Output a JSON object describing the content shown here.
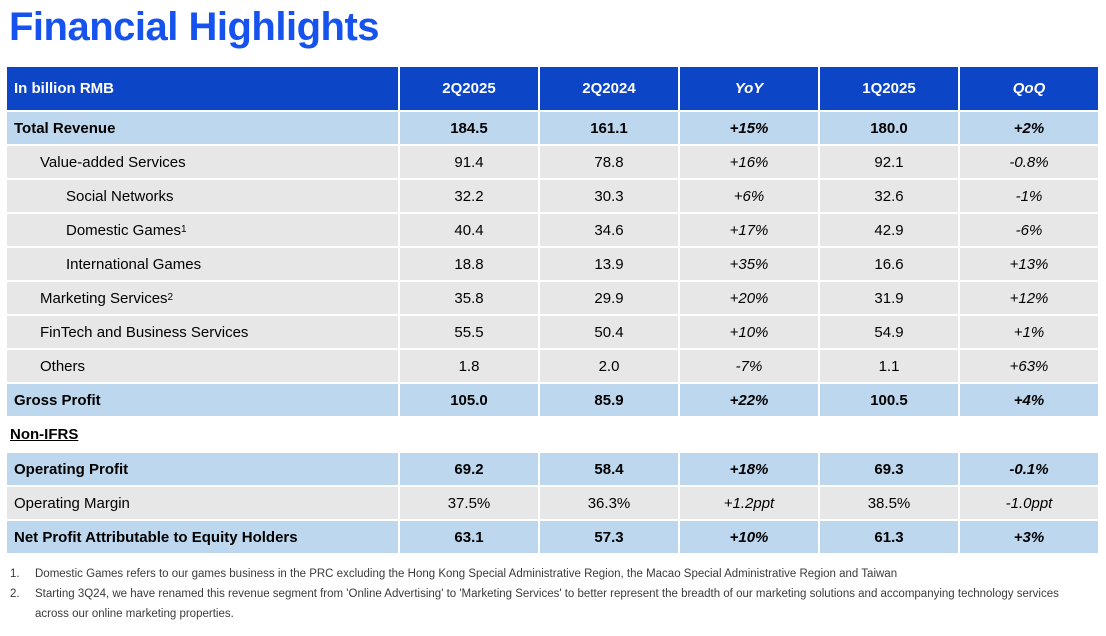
{
  "page": {
    "title": "Financial Highlights"
  },
  "colors": {
    "title_blue": "#1652EE",
    "header_blue": "#0C45C6",
    "highlight_row_blue": "#BDD7EE",
    "grey_row": "#E8E7E7"
  },
  "table": {
    "header": {
      "label": "In billion RMB",
      "columns": [
        {
          "label": "2Q2025",
          "italic": false
        },
        {
          "label": "2Q2024",
          "italic": false
        },
        {
          "label": "YoY",
          "italic": true
        },
        {
          "label": "1Q2025",
          "italic": false
        },
        {
          "label": "QoQ",
          "italic": true
        }
      ]
    },
    "rows": [
      {
        "label": "Total Revenue",
        "indent": 0,
        "style": "highlight",
        "bold": true,
        "values": [
          "184.5",
          "161.1",
          "+15%",
          "180.0",
          "+2%"
        ]
      },
      {
        "label": "Value-added Services",
        "indent": 1,
        "style": "grey",
        "bold": false,
        "values": [
          "91.4",
          "78.8",
          "+16%",
          "92.1",
          "-0.8%"
        ]
      },
      {
        "label": "Social Networks",
        "indent": 2,
        "style": "grey",
        "bold": false,
        "values": [
          "32.2",
          "30.3",
          "+6%",
          "32.6",
          "-1%"
        ]
      },
      {
        "label": "Domestic Games",
        "sup": "1",
        "indent": 2,
        "style": "grey",
        "bold": false,
        "values": [
          "40.4",
          "34.6",
          "+17%",
          "42.9",
          "-6%"
        ]
      },
      {
        "label": "International Games",
        "indent": 2,
        "style": "grey",
        "bold": false,
        "values": [
          "18.8",
          "13.9",
          "+35%",
          "16.6",
          "+13%"
        ]
      },
      {
        "label": "Marketing Services",
        "sup": "2",
        "indent": 1,
        "style": "grey",
        "bold": false,
        "values": [
          "35.8",
          "29.9",
          "+20%",
          "31.9",
          "+12%"
        ]
      },
      {
        "label": "FinTech and Business Services",
        "indent": 1,
        "style": "grey",
        "bold": false,
        "values": [
          "55.5",
          "50.4",
          "+10%",
          "54.9",
          "+1%"
        ]
      },
      {
        "label": "Others",
        "indent": 1,
        "style": "grey",
        "bold": false,
        "values": [
          "1.8",
          "2.0",
          "-7%",
          "1.1",
          "+63%"
        ]
      },
      {
        "label": "Gross Profit",
        "indent": 0,
        "style": "highlight",
        "bold": true,
        "values": [
          "105.0",
          "85.9",
          "+22%",
          "100.5",
          "+4%"
        ]
      },
      {
        "type": "section",
        "label": "Non-IFRS"
      },
      {
        "label": "Operating Profit",
        "indent": 0,
        "style": "highlight",
        "bold": true,
        "values": [
          "69.2",
          "58.4",
          "+18%",
          "69.3",
          "-0.1%"
        ]
      },
      {
        "label": "Operating Margin",
        "indent": 0,
        "style": "grey",
        "bold": false,
        "values": [
          "37.5%",
          "36.3%",
          "+1.2ppt",
          "38.5%",
          "-1.0ppt"
        ]
      },
      {
        "label": "Net Profit Attributable to Equity Holders",
        "indent": 0,
        "style": "highlight",
        "bold": true,
        "values": [
          "63.1",
          "57.3",
          "+10%",
          "61.3",
          "+3%"
        ]
      }
    ]
  },
  "footnotes": [
    {
      "num": "1.",
      "text": "Domestic Games refers to our games business in the PRC excluding the Hong Kong Special Administrative Region, the Macao Special Administrative Region and Taiwan"
    },
    {
      "num": "2.",
      "text": "Starting 3Q24, we have renamed this revenue segment from 'Online Advertising' to 'Marketing Services' to better represent the breadth of our marketing solutions and accompanying technology services across our online marketing properties."
    }
  ]
}
